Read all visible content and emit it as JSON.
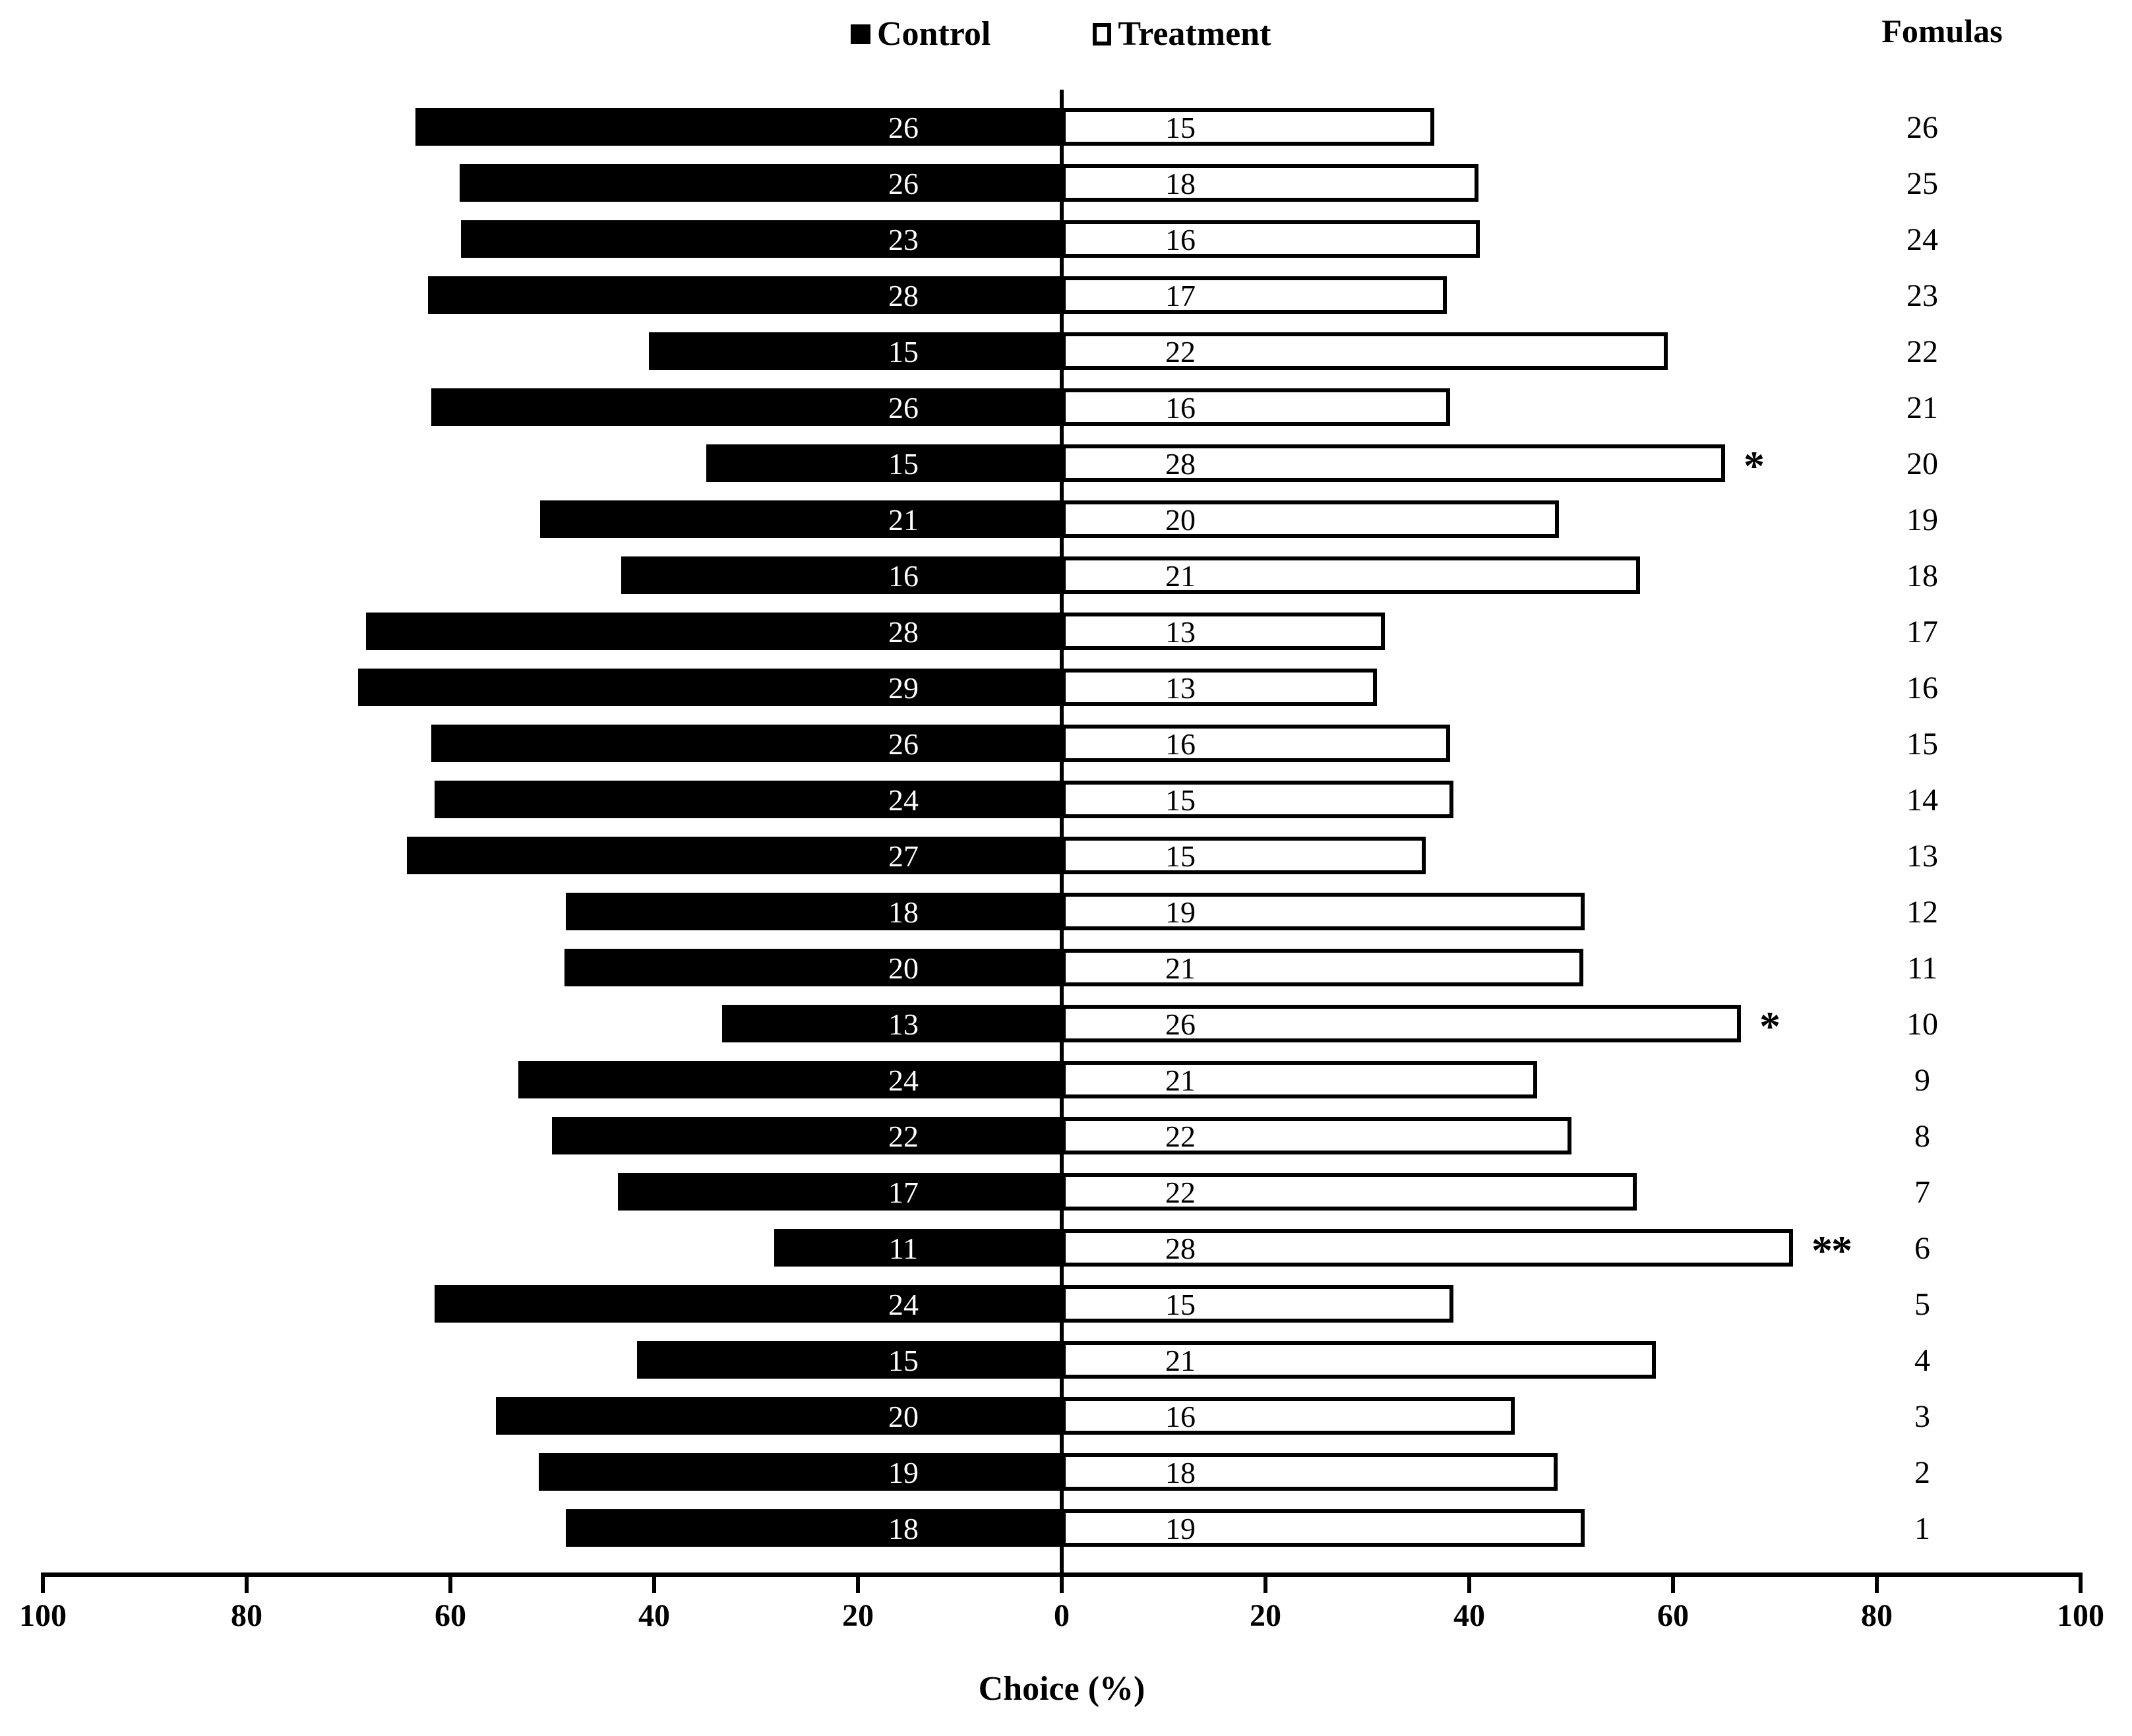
{
  "chart_data": {
    "type": "bar",
    "subtype": "diverging-horizontal-butterfly",
    "title": "",
    "xlabel": "Choice (%)",
    "column_header": "Fomulas",
    "legend": [
      {
        "label": "Control",
        "swatch": "filled-black-square"
      },
      {
        "label": "Treatment",
        "swatch": "outlined-white-square"
      }
    ],
    "colors": {
      "control": "#000000",
      "treatment_fill": "#ffffff",
      "treatment_outline": "#000000",
      "text_on_control": "#ffffff",
      "text_on_treatment": "#000000"
    },
    "axis": {
      "xlim": [
        -100,
        100
      ],
      "tick_values": [
        -100,
        -80,
        -60,
        -40,
        -20,
        0,
        20,
        40,
        60,
        80,
        100
      ],
      "tick_labels": [
        "100",
        "80",
        "60",
        "40",
        "20",
        "0",
        "20",
        "40",
        "60",
        "80",
        "100"
      ],
      "grid": "off",
      "bar_length_rule": "percent share = count / (control + treatment) * 100"
    },
    "legend_position": "top-center",
    "rows": [
      {
        "formula": "26",
        "control": 26,
        "treatment": 15,
        "significance": ""
      },
      {
        "formula": "25",
        "control": 26,
        "treatment": 18,
        "significance": ""
      },
      {
        "formula": "24",
        "control": 23,
        "treatment": 16,
        "significance": ""
      },
      {
        "formula": "23",
        "control": 28,
        "treatment": 17,
        "significance": ""
      },
      {
        "formula": "22",
        "control": 15,
        "treatment": 22,
        "significance": ""
      },
      {
        "formula": "21",
        "control": 26,
        "treatment": 16,
        "significance": ""
      },
      {
        "formula": "20",
        "control": 15,
        "treatment": 28,
        "significance": "*"
      },
      {
        "formula": "19",
        "control": 21,
        "treatment": 20,
        "significance": ""
      },
      {
        "formula": "18",
        "control": 16,
        "treatment": 21,
        "significance": ""
      },
      {
        "formula": "17",
        "control": 28,
        "treatment": 13,
        "significance": ""
      },
      {
        "formula": "16",
        "control": 29,
        "treatment": 13,
        "significance": ""
      },
      {
        "formula": "15",
        "control": 26,
        "treatment": 16,
        "significance": ""
      },
      {
        "formula": "14",
        "control": 24,
        "treatment": 15,
        "significance": ""
      },
      {
        "formula": "13",
        "control": 27,
        "treatment": 15,
        "significance": ""
      },
      {
        "formula": "12",
        "control": 18,
        "treatment": 19,
        "significance": ""
      },
      {
        "formula": "11",
        "control": 20,
        "treatment": 21,
        "significance": ""
      },
      {
        "formula": "10",
        "control": 13,
        "treatment": 26,
        "significance": "*"
      },
      {
        "formula": "9",
        "control": 24,
        "treatment": 21,
        "significance": ""
      },
      {
        "formula": "8",
        "control": 22,
        "treatment": 22,
        "significance": ""
      },
      {
        "formula": "7",
        "control": 17,
        "treatment": 22,
        "significance": ""
      },
      {
        "formula": "6",
        "control": 11,
        "treatment": 28,
        "significance": "**"
      },
      {
        "formula": "5",
        "control": 24,
        "treatment": 15,
        "significance": ""
      },
      {
        "formula": "4",
        "control": 15,
        "treatment": 21,
        "significance": ""
      },
      {
        "formula": "3",
        "control": 20,
        "treatment": 16,
        "significance": ""
      },
      {
        "formula": "2",
        "control": 19,
        "treatment": 18,
        "significance": ""
      },
      {
        "formula": "1",
        "control": 18,
        "treatment": 19,
        "significance": ""
      }
    ]
  }
}
